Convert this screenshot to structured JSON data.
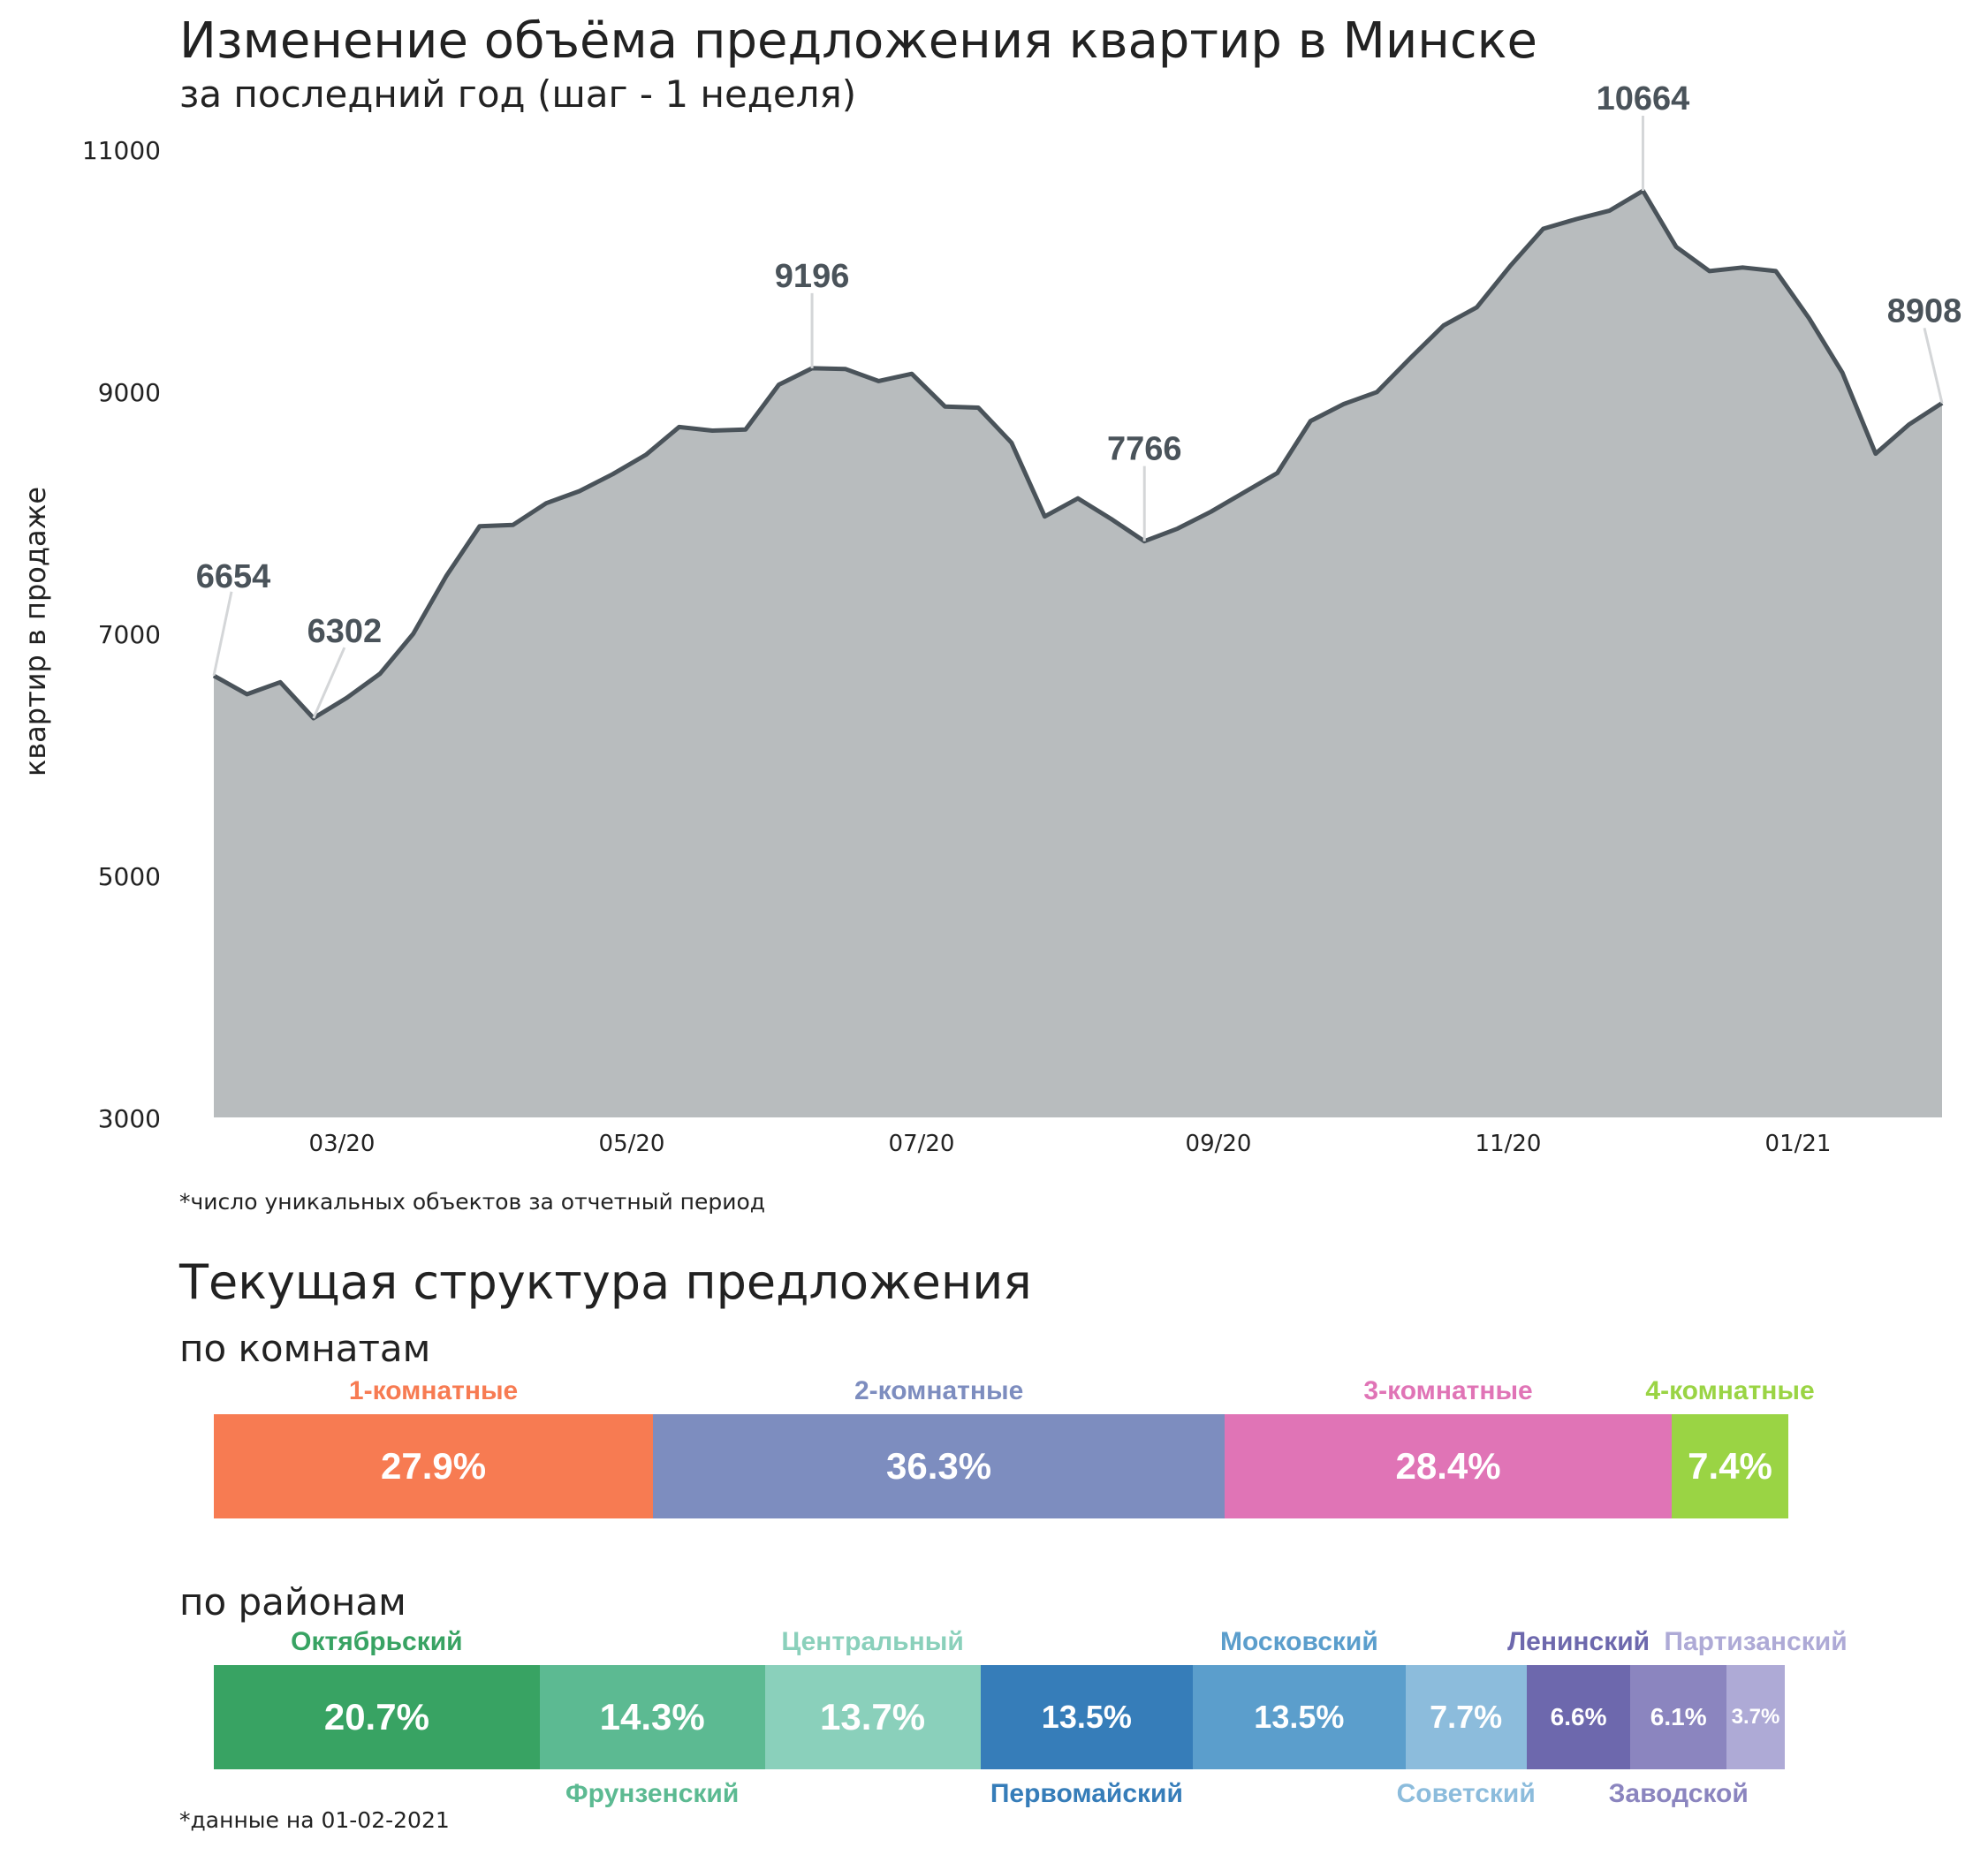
{
  "title": "Изменение объёма предложения квартир в Минске",
  "subtitle": "за последний год (шаг - 1 неделя)",
  "chart_data": {
    "type": "area",
    "ylabel": "квартир в продаже",
    "ylim": [
      3000,
      11000
    ],
    "yticks": [
      "3000",
      "5000",
      "7000",
      "9000",
      "11000"
    ],
    "xticks": [
      "03/20",
      "05/20",
      "07/20",
      "09/20",
      "11/20",
      "01/21"
    ],
    "values": [
      6654,
      6500,
      6600,
      6302,
      6470,
      6670,
      7000,
      7480,
      7890,
      7900,
      8080,
      8180,
      8320,
      8480,
      8710,
      8680,
      8690,
      9060,
      9196,
      9190,
      9090,
      9150,
      8880,
      8870,
      8580,
      7970,
      8120,
      7950,
      7766,
      7870,
      8010,
      8170,
      8330,
      8760,
      8900,
      9000,
      9280,
      9550,
      9700,
      10040,
      10350,
      10430,
      10500,
      10664,
      10200,
      10000,
      10030,
      10000,
      9610,
      9160,
      8490,
      8730,
      8908
    ],
    "annotations": [
      {
        "index": 0,
        "label": "6654"
      },
      {
        "index": 3,
        "label": "6302"
      },
      {
        "index": 18,
        "label": "9196"
      },
      {
        "index": 28,
        "label": "7766"
      },
      {
        "index": 43,
        "label": "10664"
      },
      {
        "index": 52,
        "label": "8908"
      }
    ],
    "fill_color": "#b8bcbe",
    "line_color": "#4a535a",
    "label_color": "#4a535a"
  },
  "footnote_chart": "*число уникальных объектов за отчетный период",
  "structure_title": "Текущая структура предложения",
  "rooms": {
    "title": "по комнатам",
    "segments": [
      {
        "name": "1-комнатные",
        "pct": 27.9,
        "label": "27.9%",
        "color": "#f77b52"
      },
      {
        "name": "2-комнатные",
        "pct": 36.3,
        "label": "36.3%",
        "color": "#7d8dbf"
      },
      {
        "name": "3-комнатные",
        "pct": 28.4,
        "label": "28.4%",
        "color": "#e074b6"
      },
      {
        "name": "4-комнатные",
        "pct": 7.4,
        "label": "7.4%",
        "color": "#9ad444"
      }
    ]
  },
  "districts": {
    "title": "по районам",
    "segments": [
      {
        "name": "Октябрьский",
        "pct": 20.7,
        "label": "20.7%",
        "color": "#38a363"
      },
      {
        "name": "Фрунзенский",
        "pct": 14.3,
        "label": "14.3%",
        "color": "#5cba92"
      },
      {
        "name": "Центральный",
        "pct": 13.7,
        "label": "13.7%",
        "color": "#8ad0bb"
      },
      {
        "name": "Первомайский",
        "pct": 13.5,
        "label": "13.5%",
        "color": "#367db9"
      },
      {
        "name": "Московский",
        "pct": 13.5,
        "label": "13.5%",
        "color": "#5b9ecc"
      },
      {
        "name": "Советский",
        "pct": 7.7,
        "label": "7.7%",
        "color": "#8cbcdc"
      },
      {
        "name": "Ленинский",
        "pct": 6.6,
        "label": "6.6%",
        "color": "#6d68ad"
      },
      {
        "name": "Заводской",
        "pct": 6.1,
        "label": "6.1%",
        "color": "#8b85bf"
      },
      {
        "name": "Партизанский",
        "pct": 3.7,
        "label": "3.7%",
        "color": "#aeaad6"
      }
    ]
  },
  "footnote_data": "*данные на 01-02-2021"
}
